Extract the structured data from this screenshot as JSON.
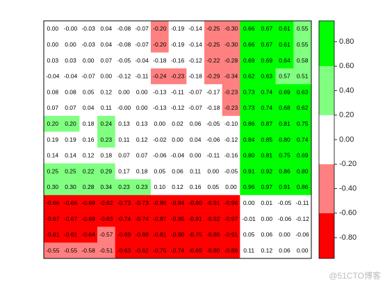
{
  "chart_data": {
    "type": "heatmap",
    "values": [
      [
        0.0,
        -0.0,
        -0.03,
        0.04,
        -0.08,
        -0.07,
        -0.2,
        -0.19,
        -0.14,
        -0.25,
        -0.3,
        0.66,
        0.67,
        0.61,
        0.55
      ],
      [
        0.0,
        0.0,
        -0.03,
        0.04,
        -0.08,
        -0.07,
        -0.2,
        -0.19,
        -0.14,
        -0.25,
        -0.3,
        0.66,
        0.67,
        0.61,
        0.55
      ],
      [
        0.03,
        0.03,
        0.0,
        0.07,
        -0.05,
        -0.04,
        -0.18,
        -0.16,
        -0.12,
        -0.22,
        -0.28,
        0.69,
        0.69,
        0.64,
        0.58
      ],
      [
        -0.04,
        -0.04,
        -0.07,
        0.0,
        -0.12,
        -0.11,
        -0.24,
        -0.23,
        -0.18,
        -0.29,
        -0.34,
        0.62,
        0.63,
        0.57,
        0.51
      ],
      [
        0.08,
        0.08,
        0.05,
        0.12,
        0.0,
        0.0,
        -0.13,
        -0.11,
        -0.07,
        -0.17,
        -0.23,
        0.73,
        0.74,
        0.69,
        0.63
      ],
      [
        0.07,
        0.07,
        0.04,
        0.11,
        -0.0,
        0.0,
        -0.13,
        -0.12,
        -0.07,
        -0.18,
        -0.23,
        0.73,
        0.74,
        0.68,
        0.62
      ],
      [
        0.2,
        0.2,
        0.18,
        0.24,
        0.13,
        0.13,
        0.0,
        0.02,
        0.06,
        -0.05,
        -0.1,
        0.86,
        0.87,
        0.81,
        0.75
      ],
      [
        0.19,
        0.19,
        0.16,
        0.23,
        0.11,
        0.12,
        -0.02,
        0.0,
        0.04,
        -0.06,
        -0.12,
        0.84,
        0.85,
        0.8,
        0.74
      ],
      [
        0.14,
        0.14,
        0.12,
        0.18,
        0.07,
        0.07,
        -0.06,
        -0.04,
        0.0,
        -0.11,
        -0.16,
        0.8,
        0.81,
        0.75,
        0.69
      ],
      [
        0.25,
        0.25,
        0.22,
        0.29,
        0.17,
        0.18,
        0.05,
        0.06,
        0.11,
        0.0,
        -0.05,
        0.91,
        0.92,
        0.86,
        0.8
      ],
      [
        0.3,
        0.3,
        0.28,
        0.34,
        0.23,
        0.23,
        0.1,
        0.12,
        0.16,
        0.05,
        0.0,
        0.96,
        0.97,
        0.91,
        0.86
      ],
      [
        -0.66,
        -0.66,
        -0.69,
        -0.62,
        -0.73,
        -0.73,
        -0.86,
        -0.84,
        -0.8,
        -0.91,
        -0.96,
        0.0,
        0.01,
        -0.05,
        -0.11
      ],
      [
        -0.67,
        -0.67,
        -0.69,
        -0.63,
        -0.74,
        -0.74,
        -0.87,
        -0.85,
        -0.81,
        -0.92,
        -0.97,
        -0.01,
        0.0,
        -0.06,
        -0.12
      ],
      [
        -0.61,
        -0.61,
        -0.64,
        -0.57,
        -0.69,
        -0.68,
        -0.81,
        -0.8,
        -0.75,
        -0.86,
        -0.91,
        0.05,
        0.06,
        0.0,
        -0.06
      ],
      [
        -0.55,
        -0.55,
        -0.58,
        -0.51,
        -0.63,
        -0.62,
        -0.75,
        -0.74,
        -0.69,
        -0.8,
        -0.86,
        0.11,
        0.12,
        0.06,
        0.0
      ]
    ],
    "value_labels": [
      [
        "0.00",
        "-0.00",
        "-0.03",
        "0.04",
        "-0.08",
        "-0.07",
        "-0.20",
        "-0.19",
        "-0.14",
        "-0.25",
        "-0.30",
        "0.66",
        "0.67",
        "0.61",
        "0.55"
      ],
      [
        "0.00",
        "0.00",
        "-0.03",
        "0.04",
        "-0.08",
        "-0.07",
        "-0.20",
        "-0.19",
        "-0.14",
        "-0.25",
        "-0.30",
        "0.66",
        "0.67",
        "0.61",
        "0.55"
      ],
      [
        "0.03",
        "0.03",
        "0.00",
        "0.07",
        "-0.05",
        "-0.04",
        "-0.18",
        "-0.16",
        "-0.12",
        "-0.22",
        "-0.28",
        "0.69",
        "0.69",
        "0.64",
        "0.58"
      ],
      [
        "-0.04",
        "-0.04",
        "-0.07",
        "0.00",
        "-0.12",
        "-0.11",
        "-0.24",
        "-0.23",
        "-0.18",
        "-0.29",
        "-0.34",
        "0.62",
        "0.63",
        "0.57",
        "0.51"
      ],
      [
        "0.08",
        "0.08",
        "0.05",
        "0.12",
        "0.00",
        "0.00",
        "-0.13",
        "-0.11",
        "-0.07",
        "-0.17",
        "-0.23",
        "0.73",
        "0.74",
        "0.69",
        "0.63"
      ],
      [
        "0.07",
        "0.07",
        "0.04",
        "0.11",
        "-0.00",
        "0.00",
        "-0.13",
        "-0.12",
        "-0.07",
        "-0.18",
        "-0.23",
        "0.73",
        "0.74",
        "0.68",
        "0.62"
      ],
      [
        "0.20",
        "0.20",
        "0.18",
        "0.24",
        "0.13",
        "0.13",
        "0.00",
        "0.02",
        "0.06",
        "-0.05",
        "-0.10",
        "0.86",
        "0.87",
        "0.81",
        "0.75"
      ],
      [
        "0.19",
        "0.19",
        "0.16",
        "0.23",
        "0.11",
        "0.12",
        "-0.02",
        "0.00",
        "0.04",
        "-0.06",
        "-0.12",
        "0.84",
        "0.85",
        "0.80",
        "0.74"
      ],
      [
        "0.14",
        "0.14",
        "0.12",
        "0.18",
        "0.07",
        "0.07",
        "-0.06",
        "-0.04",
        "0.00",
        "-0.11",
        "-0.16",
        "0.80",
        "0.81",
        "0.75",
        "0.69"
      ],
      [
        "0.25",
        "0.25",
        "0.22",
        "0.29",
        "0.17",
        "0.18",
        "0.05",
        "0.06",
        "0.11",
        "0.00",
        "-0.05",
        "0.91",
        "0.92",
        "0.86",
        "0.80"
      ],
      [
        "0.30",
        "0.30",
        "0.28",
        "0.34",
        "0.23",
        "0.23",
        "0.10",
        "0.12",
        "0.16",
        "0.05",
        "0.00",
        "0.96",
        "0.97",
        "0.91",
        "0.86"
      ],
      [
        "-0.66",
        "-0.66",
        "-0.69",
        "-0.62",
        "-0.73",
        "-0.73",
        "-0.86",
        "-0.84",
        "-0.80",
        "-0.91",
        "-0.96",
        "0.00",
        "0.01",
        "-0.05",
        "-0.11"
      ],
      [
        "-0.67",
        "-0.67",
        "-0.69",
        "-0.63",
        "-0.74",
        "-0.74",
        "-0.87",
        "-0.85",
        "-0.81",
        "-0.92",
        "-0.97",
        "-0.01",
        "0.00",
        "-0.06",
        "-0.12"
      ],
      [
        "-0.61",
        "-0.61",
        "-0.64",
        "-0.57",
        "-0.69",
        "-0.68",
        "-0.81",
        "-0.80",
        "-0.75",
        "-0.86",
        "-0.91",
        "0.05",
        "0.06",
        "0.00",
        "-0.06"
      ],
      [
        "-0.55",
        "-0.55",
        "-0.58",
        "-0.51",
        "-0.63",
        "-0.62",
        "-0.75",
        "-0.74",
        "-0.69",
        "-0.80",
        "-0.86",
        "0.11",
        "0.12",
        "0.06",
        "0.00"
      ]
    ],
    "colorbar": {
      "bins": [
        -0.97,
        -0.6,
        -0.2,
        0.2,
        0.6,
        0.97
      ],
      "colors": [
        "#ff0000",
        "#ff8080",
        "#ffffff",
        "#80ff80",
        "#00ff00"
      ],
      "ylim": [
        -0.97,
        0.97
      ],
      "yticks": [
        {
          "value": -0.8,
          "label": "-0.80"
        },
        {
          "value": -0.6,
          "label": "-0.60"
        },
        {
          "value": -0.4,
          "label": "-0.40"
        },
        {
          "value": -0.2,
          "label": "-0.20"
        },
        {
          "value": 0,
          "label": "0.00"
        },
        {
          "value": 0.2,
          "label": "0.20"
        },
        {
          "value": 0.4,
          "label": "0.40"
        },
        {
          "value": 0.6,
          "label": "0.60"
        },
        {
          "value": 0.8,
          "label": "0.80"
        }
      ]
    },
    "watermark": "@51CTO博客"
  }
}
